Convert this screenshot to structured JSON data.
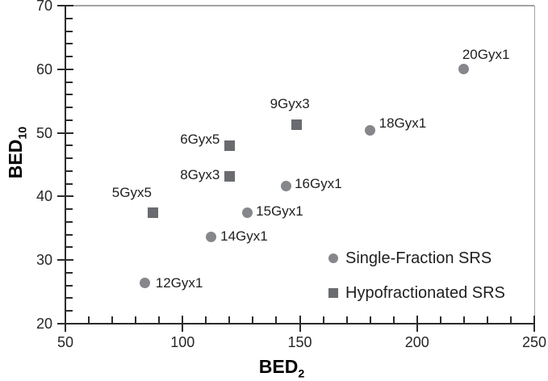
{
  "chart_data": {
    "type": "scatter",
    "xlabel": "BED",
    "xlabel_sub": "2",
    "ylabel": "BED",
    "ylabel_sub": "10",
    "xlim": [
      50,
      250
    ],
    "ylim": [
      20,
      70
    ],
    "x_major_ticks": [
      50,
      100,
      150,
      200,
      250
    ],
    "x_minor_step": 10,
    "y_major_ticks": [
      20,
      30,
      40,
      50,
      60,
      70
    ],
    "y_minor_step": 2,
    "grid": false,
    "legend_position": "inside-bottom-right",
    "series": [
      {
        "name": "Single-Fraction SRS",
        "marker": "circle",
        "color": "#85878b",
        "points": [
          {
            "label": "12Gyx1",
            "x": 84,
            "y": 26.4,
            "label_anchor": "start",
            "label_dx": 13,
            "label_dy": 0
          },
          {
            "label": "14Gyx1",
            "x": 112,
            "y": 33.6,
            "label_anchor": "start",
            "label_dx": 12,
            "label_dy": -1
          },
          {
            "label": "15Gyx1",
            "x": 127.5,
            "y": 37.5,
            "label_anchor": "start",
            "label_dx": 11,
            "label_dy": -1
          },
          {
            "label": "16Gyx1",
            "x": 144,
            "y": 41.6,
            "label_anchor": "start",
            "label_dx": 11,
            "label_dy": -3
          },
          {
            "label": "18Gyx1",
            "x": 180,
            "y": 50.4,
            "label_anchor": "start",
            "label_dx": 11,
            "label_dy": -8
          },
          {
            "label": "20Gyx1",
            "x": 220,
            "y": 60,
            "label_anchor": "start",
            "label_dx": -2,
            "label_dy": -18
          }
        ]
      },
      {
        "name": "Hypofractionated SRS",
        "marker": "square",
        "color": "#696b6f",
        "points": [
          {
            "label": "5Gyx5",
            "x": 87.5,
            "y": 37.5,
            "label_anchor": "end",
            "label_dx": -2,
            "label_dy": -24
          },
          {
            "label": "8Gyx3",
            "x": 120,
            "y": 43.2,
            "label_anchor": "end",
            "label_dx": -12,
            "label_dy": -1
          },
          {
            "label": "6Gyx5",
            "x": 120,
            "y": 48,
            "label_anchor": "end",
            "label_dx": -12,
            "label_dy": -7
          },
          {
            "label": "9Gyx3",
            "x": 148.5,
            "y": 51.3,
            "label_anchor": "middle",
            "label_dx": -8,
            "label_dy": -25
          }
        ]
      }
    ],
    "colors": {
      "single_fraction_marker": "#85878b",
      "hypofractionated_marker": "#696b6f",
      "axis": "#2b2b2b",
      "plot_border": "#a3a3a3",
      "text": "#1f1f1f",
      "background": "#ffffff"
    }
  }
}
